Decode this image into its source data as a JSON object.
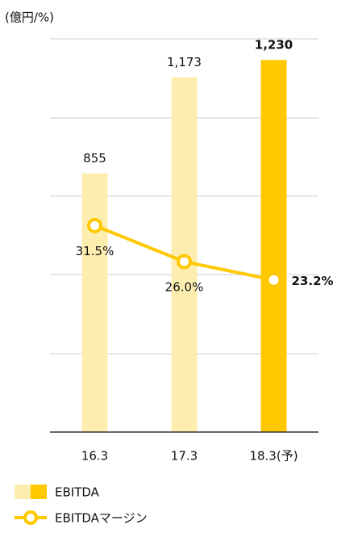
{
  "chart_data": {
    "type": "bar",
    "unit_label": "(億円/%)",
    "categories": [
      "16.3",
      "17.3",
      "18.3(予)"
    ],
    "ylim": [
      0,
      1300
    ],
    "y2lim": [
      0,
      60
    ],
    "series": [
      {
        "name": "EBITDA",
        "type": "bar",
        "colors": [
          "#fdeeb0",
          "#fdeeb0",
          "#ffc800"
        ],
        "values": [
          855,
          1173,
          1230
        ],
        "value_labels": [
          "855",
          "1,173",
          "1,230"
        ]
      },
      {
        "name": "EBITDAマージン",
        "type": "line",
        "axis": "y2",
        "color": "#ffc800",
        "values": [
          31.5,
          26.0,
          23.2
        ],
        "value_labels": [
          "31.5%",
          "26.0%",
          "23.2%"
        ]
      }
    ]
  }
}
